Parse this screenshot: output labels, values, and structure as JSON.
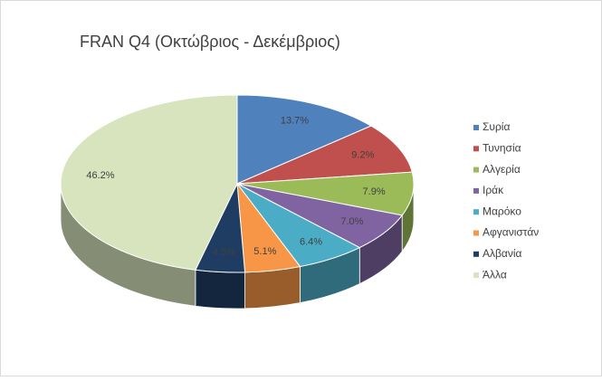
{
  "chart_data": {
    "type": "pie",
    "title": "FRAN Q4 (Οκτώβριος - Δεκέμβριος)",
    "categories": [
      "Συρία",
      "Τυνησία",
      "Αλγερία",
      "Ιράκ",
      "Μαρόκο",
      "Αφγανιστάν",
      "Αλβανία",
      "Άλλα"
    ],
    "values": [
      13.7,
      9.2,
      7.9,
      7.0,
      6.4,
      5.1,
      4.5,
      46.2
    ],
    "value_labels": [
      "13.7%",
      "9.2%",
      "7.9%",
      "7.0%",
      "6.4%",
      "5.1%",
      "4.5%",
      "46.2%"
    ],
    "colors": [
      "#4f81bd",
      "#c0504d",
      "#9bbb59",
      "#8064a2",
      "#4bacc6",
      "#f79646",
      "#1f3d63",
      "#d7e4bd"
    ],
    "legend": "right"
  }
}
